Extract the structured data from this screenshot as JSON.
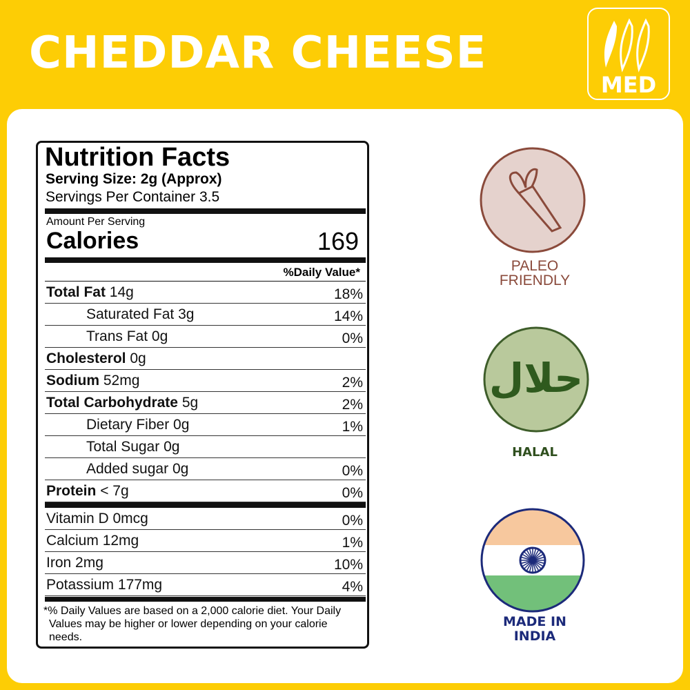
{
  "header": {
    "title": "CHEDDAR CHEESE",
    "spice_level": "MED"
  },
  "nutrition": {
    "title": "Nutrition Facts",
    "serving_size": "Serving Size: 2g (Approx)",
    "servings": "Servings Per Container 3.5",
    "amount_per_serving": "Amount Per Serving",
    "calories_label": "Calories",
    "calories": "169",
    "daily_value_header": "%Daily Value*",
    "rows": [
      {
        "name": "Total Fat",
        "amount": "14g",
        "dv": "18%",
        "bold": true
      },
      {
        "name": "Saturated Fat",
        "amount": "3g",
        "dv": "14%",
        "indent": true
      },
      {
        "name": "Trans Fat",
        "amount": "0g",
        "dv": "0%",
        "indent": true
      },
      {
        "name": "Cholesterol",
        "amount": "0g",
        "bold": true
      },
      {
        "name": "Sodium",
        "amount": "52mg",
        "dv": "2%",
        "bold": true
      },
      {
        "name": "Total Carbohydrate",
        "amount": "5g",
        "dv": "2%",
        "bold": true
      },
      {
        "name": "Dietary Fiber",
        "amount": "0g",
        "dv": "1%",
        "indent": true
      },
      {
        "name": "Total Sugar",
        "amount": "0g",
        "indent": true
      },
      {
        "name": "Added sugar",
        "amount": "0g",
        "dv": "0%",
        "indent": true
      },
      {
        "name": "Protein",
        "amount": "< 7g",
        "dv": "0%",
        "bold": true
      },
      {
        "name": "Vitamin D",
        "amount": "0mcg",
        "dv": "0%",
        "thick_before": true
      },
      {
        "name": "Calcium",
        "amount": "12mg",
        "dv": "1%"
      },
      {
        "name": "Iron",
        "amount": "2mg",
        "dv": "10%"
      },
      {
        "name": "Potassium",
        "amount": "177mg",
        "dv": "4%"
      }
    ],
    "footnote": [
      "*% Daily Values are based on a 2,000 calorie diet. Your Daily",
      "Values may be higher or lower depending on your calorie",
      "needs."
    ]
  },
  "badges": [
    {
      "lines": [
        "PALEO",
        "FRIENDLY"
      ]
    },
    {
      "symbol": "حلال",
      "lines": [
        "HALAL"
      ]
    },
    {
      "lines": [
        "MADE IN",
        "INDIA"
      ]
    }
  ]
}
